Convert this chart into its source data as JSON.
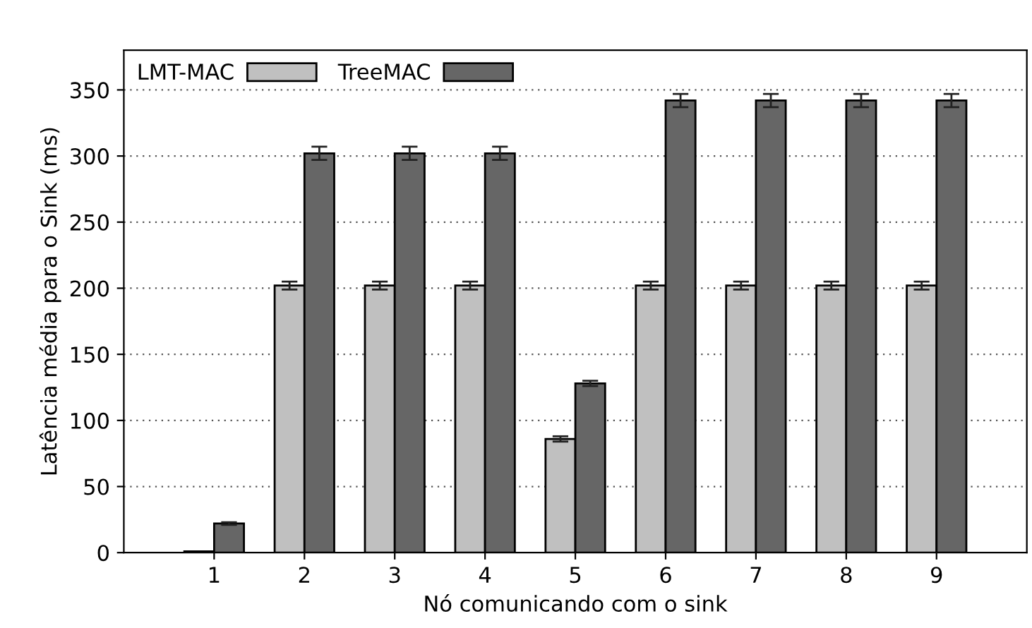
{
  "chart_data": {
    "type": "bar",
    "xlabel": "Nó comunicando com o sink",
    "ylabel": "Latência média para o Sink (ms)",
    "categories": [
      "1",
      "2",
      "3",
      "4",
      "5",
      "6",
      "7",
      "8",
      "9"
    ],
    "series": [
      {
        "name": "LMT-MAC",
        "color": "#c0c0c0",
        "values": [
          1,
          202,
          202,
          202,
          86,
          202,
          202,
          202,
          202
        ],
        "errors": [
          null,
          3,
          3,
          3,
          2,
          3,
          3,
          3,
          3
        ]
      },
      {
        "name": "TreeMAC",
        "color": "#666666",
        "values": [
          22,
          302,
          302,
          302,
          128,
          342,
          342,
          342,
          342
        ],
        "errors": [
          1,
          5,
          5,
          5,
          2,
          5,
          5,
          5,
          5
        ]
      }
    ],
    "ylim": [
      0,
      380
    ],
    "yticks": [
      0,
      50,
      100,
      150,
      200,
      250,
      300,
      350
    ],
    "grid": "y",
    "legend": "top left"
  }
}
